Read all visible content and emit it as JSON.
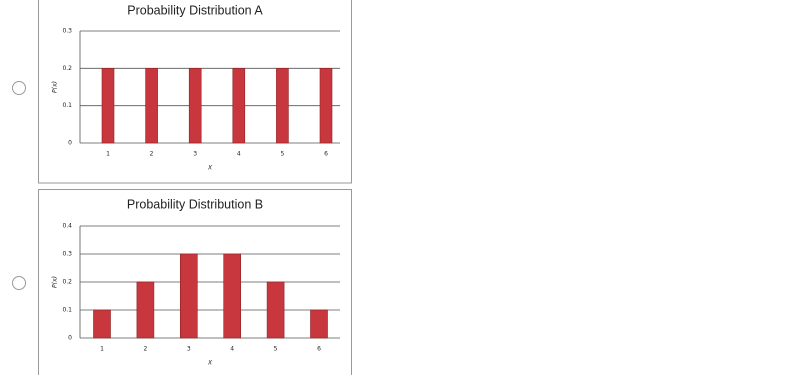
{
  "chart_data": [
    {
      "type": "bar",
      "title": "Probability Distribution A",
      "x_label": "X",
      "y_label": "P(x)",
      "categories": [
        "1",
        "2",
        "3",
        "4",
        "5",
        "6"
      ],
      "values": [
        0.2,
        0.2,
        0.2,
        0.2,
        0.2,
        0.2
      ],
      "color": "#c8373d",
      "ylim": [
        0,
        0.3
      ],
      "yticks": [
        0,
        0.1,
        0.2,
        0.3
      ],
      "grid": true
    },
    {
      "type": "bar",
      "title": "Probability Distribution B",
      "x_label": "X",
      "y_label": "P(x)",
      "categories": [
        "1",
        "2",
        "3",
        "4",
        "5",
        "6"
      ],
      "values": [
        0.1,
        0.2,
        0.3,
        0.3,
        0.2,
        0.1
      ],
      "color": "#c8373d",
      "ylim": [
        0,
        0.4
      ],
      "yticks": [
        0,
        0.1,
        0.2,
        0.3,
        0.4
      ],
      "grid": true
    }
  ]
}
